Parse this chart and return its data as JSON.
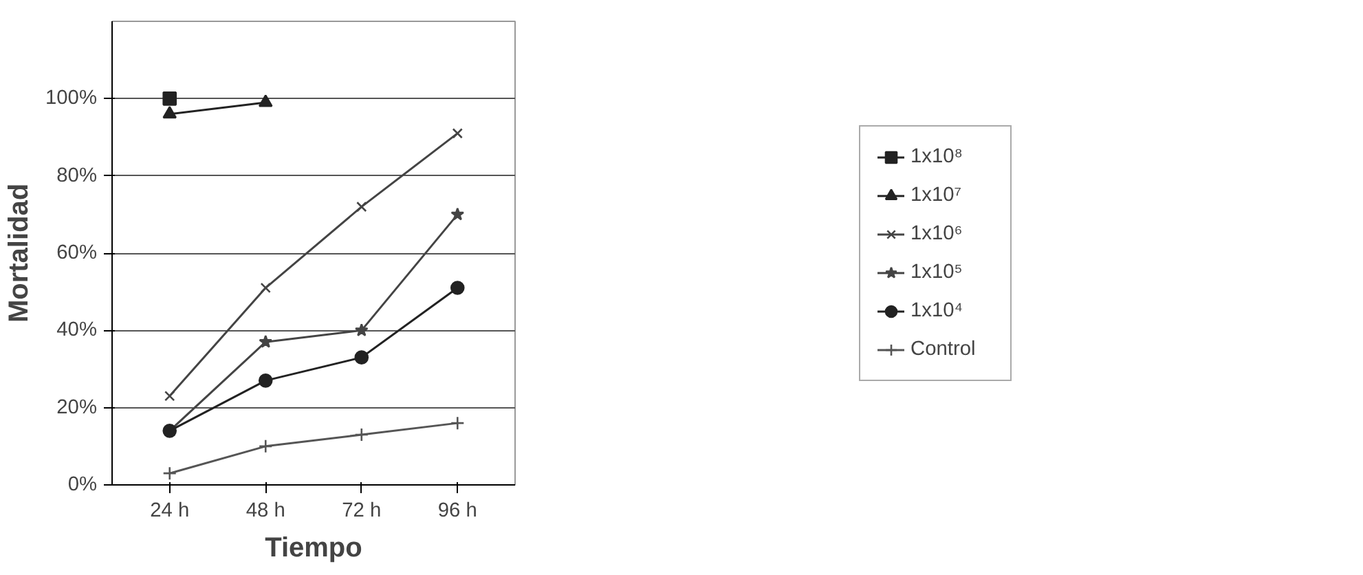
{
  "chart_data": {
    "type": "line",
    "xlabel": "Tiempo",
    "ylabel": "Mortalidad",
    "categories": [
      "24 h",
      "48 h",
      "72 h",
      "96 h"
    ],
    "ylim": [
      0,
      120
    ],
    "yticks": [
      {
        "value": 0,
        "label": "0%"
      },
      {
        "value": 20,
        "label": "20%"
      },
      {
        "value": 40,
        "label": "40%"
      },
      {
        "value": 60,
        "label": "60%"
      },
      {
        "value": 80,
        "label": "80%"
      },
      {
        "value": 100,
        "label": "100%"
      }
    ],
    "grid": "y",
    "legend": "right",
    "series": [
      {
        "name": "1x10⁸",
        "color": "#222222",
        "marker": "square",
        "values": [
          100,
          null,
          null,
          null
        ]
      },
      {
        "name": "1x10⁷",
        "color": "#222222",
        "marker": "triangle",
        "values": [
          96,
          99,
          null,
          null
        ]
      },
      {
        "name": "1x10⁶",
        "color": "#444444",
        "marker": "x",
        "values": [
          23,
          51,
          72,
          91
        ]
      },
      {
        "name": "1x10⁵",
        "color": "#444444",
        "marker": "star",
        "values": [
          14,
          37,
          40,
          70
        ]
      },
      {
        "name": "1x10⁴",
        "color": "#222222",
        "marker": "circle",
        "values": [
          14,
          27,
          33,
          51
        ]
      },
      {
        "name": "Control",
        "color": "#555555",
        "marker": "cross",
        "values": [
          3,
          10,
          13,
          16
        ]
      }
    ]
  }
}
